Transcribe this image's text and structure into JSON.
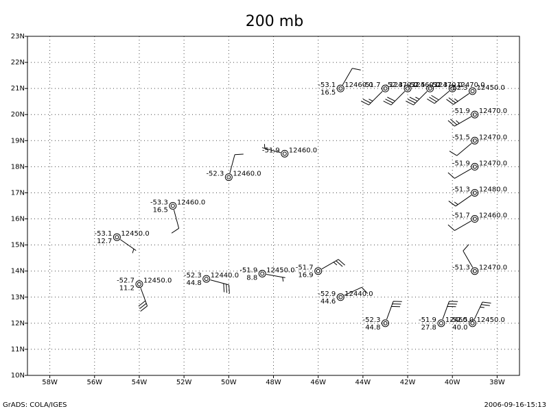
{
  "title": "200 mb",
  "footer_left": "GrADS: COLA/IGES",
  "footer_right": "2006-09-16-15:13",
  "xlim": [
    -59,
    -37
  ],
  "ylim": [
    10,
    23
  ],
  "xticks": [
    {
      "value": -58,
      "label": "58W"
    },
    {
      "value": -56,
      "label": "56W"
    },
    {
      "value": -54,
      "label": "54W"
    },
    {
      "value": -52,
      "label": "52W"
    },
    {
      "value": -50,
      "label": "50W"
    },
    {
      "value": -48,
      "label": "48W"
    },
    {
      "value": -46,
      "label": "46W"
    },
    {
      "value": -44,
      "label": "44W"
    },
    {
      "value": -42,
      "label": "42W"
    },
    {
      "value": -40,
      "label": "40W"
    },
    {
      "value": -38,
      "label": "38W"
    }
  ],
  "yticks": [
    {
      "value": 10,
      "label": "10N"
    },
    {
      "value": 11,
      "label": "11N"
    },
    {
      "value": 12,
      "label": "12N"
    },
    {
      "value": 13,
      "label": "13N"
    },
    {
      "value": 14,
      "label": "14N"
    },
    {
      "value": 15,
      "label": "15N"
    },
    {
      "value": 16,
      "label": "16N"
    },
    {
      "value": 17,
      "label": "17N"
    },
    {
      "value": 18,
      "label": "18N"
    },
    {
      "value": 19,
      "label": "19N"
    },
    {
      "value": 20,
      "label": "20N"
    },
    {
      "value": 21,
      "label": "21N"
    },
    {
      "value": 22,
      "label": "22N"
    },
    {
      "value": 23,
      "label": "23N"
    }
  ],
  "stations": [
    {
      "lon": -45.0,
      "lat": 21.0,
      "temp": "-53.1",
      "spread": "16.5",
      "height": "12460.0",
      "wind_dir": 30,
      "wind_speed": 10
    },
    {
      "lon": -43.0,
      "lat": 21.0,
      "temp": "-51.7",
      "height": "12470.0",
      "wind_dir": 225,
      "wind_speed": 25
    },
    {
      "lon": -42.0,
      "lat": 21.0,
      "temp": "-52.3",
      "height": "12460.0",
      "wind_dir": 225,
      "wind_speed": 30
    },
    {
      "lon": -41.0,
      "lat": 21.0,
      "temp": "-52.5",
      "height": "12470.0",
      "wind_dir": 225,
      "wind_speed": 35
    },
    {
      "lon": -40.0,
      "lat": 21.0,
      "temp": "-52.3",
      "height": "12470.0",
      "wind_dir": 230,
      "wind_speed": 30
    },
    {
      "lon": -39.1,
      "lat": 20.9,
      "temp": "-52.3",
      "height": "12450.0",
      "wind_dir": 235,
      "wind_speed": 25
    },
    {
      "lon": -39.0,
      "lat": 20.0,
      "temp": "-51.9",
      "height": "12470.0",
      "wind_dir": 240,
      "wind_speed": 25
    },
    {
      "lon": -39.0,
      "lat": 19.0,
      "temp": "-51.5",
      "height": "12470.0",
      "wind_dir": 230,
      "wind_speed": 10
    },
    {
      "lon": -39.0,
      "lat": 18.0,
      "temp": "-51.9",
      "height": "12470.0",
      "wind_dir": 240,
      "wind_speed": 10
    },
    {
      "lon": -39.0,
      "lat": 17.0,
      "temp": "-51.3",
      "height": "12480.0",
      "wind_dir": 235,
      "wind_speed": 15
    },
    {
      "lon": -39.0,
      "lat": 16.0,
      "temp": "-51.7",
      "height": "12460.0",
      "wind_dir": 240,
      "wind_speed": 10
    },
    {
      "lon": -39.0,
      "lat": 14.0,
      "temp": "-51.3",
      "height": "12470.0",
      "wind_dir": 330,
      "wind_speed": 10
    },
    {
      "lon": -47.5,
      "lat": 18.5,
      "temp": "-51.9",
      "height": "12460.0",
      "wind_dir": 285,
      "wind_speed": 5
    },
    {
      "lon": -50.0,
      "lat": 17.6,
      "temp": "-52.3",
      "height": "12460.0",
      "wind_dir": 15,
      "wind_speed": 10
    },
    {
      "lon": -52.5,
      "lat": 16.5,
      "temp": "-53.3",
      "spread": "16.5",
      "height": "12460.0",
      "wind_dir": 165,
      "wind_speed": 10
    },
    {
      "lon": -55.0,
      "lat": 15.3,
      "temp": "-53.1",
      "spread": "12.7",
      "height": "12450.0",
      "wind_dir": 125,
      "wind_speed": 5
    },
    {
      "lon": -54.0,
      "lat": 13.5,
      "temp": "-52.7",
      "spread": "11.2",
      "height": "12450.0",
      "wind_dir": 160,
      "wind_speed": 30
    },
    {
      "lon": -51.0,
      "lat": 13.7,
      "temp": "-52.3",
      "spread": "44.8",
      "height": "12440.0",
      "wind_dir": 105,
      "wind_speed": 30
    },
    {
      "lon": -48.5,
      "lat": 13.9,
      "temp": "-51.9",
      "spread": "8.8",
      "height": "12450.0",
      "wind_dir": 100,
      "wind_speed": 5
    },
    {
      "lon": -46.0,
      "lat": 14.0,
      "temp": "-51.7",
      "spread": "16.9",
      "wind_dir": 60,
      "wind_speed": 25
    },
    {
      "lon": -45.0,
      "lat": 13.0,
      "temp": "-52.9",
      "spread": "44.6",
      "height": "12440.0",
      "wind_dir": 65,
      "wind_speed": 10
    },
    {
      "lon": -43.0,
      "lat": 12.0,
      "temp": "-52.3",
      "spread": "44.8",
      "wind_dir": 20,
      "wind_speed": 30
    },
    {
      "lon": -40.5,
      "lat": 12.0,
      "temp": "-51.9",
      "spread": "27.8",
      "height": "12460.0",
      "wind_dir": 20,
      "wind_speed": 30
    },
    {
      "lon": -39.1,
      "lat": 12.0,
      "temp": "-52.5",
      "spread": "40.0",
      "height": "12450.0",
      "wind_dir": 25,
      "wind_speed": 25
    }
  ]
}
